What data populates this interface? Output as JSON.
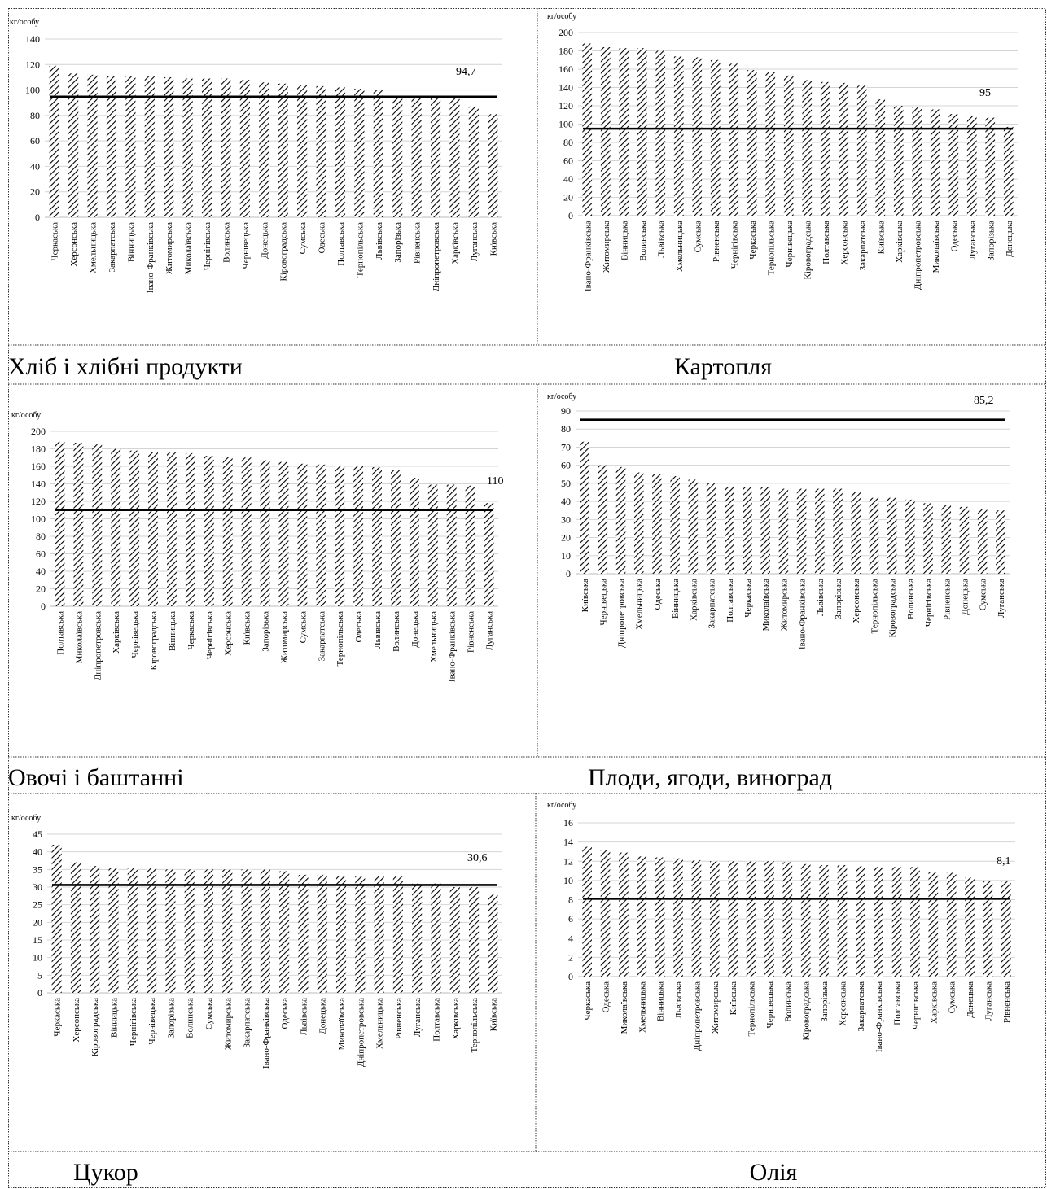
{
  "chart_data": [
    {
      "type": "bar",
      "title": "Хліб і хлібні продукти",
      "ylabel": "кг/особу",
      "ylim": [
        0,
        140
      ],
      "yticks": [
        0,
        20,
        40,
        60,
        80,
        100,
        120,
        140
      ],
      "reference_line": 94.7,
      "reference_label": "94,7",
      "categories": [
        "Черкаська",
        "Херсонська",
        "Хмельницька",
        "Закарпатська",
        "Вінницька",
        "Івано-Франківська",
        "Житомирська",
        "Миколаївська",
        "Чернігівська",
        "Волинська",
        "Чернівецька",
        "Донецька",
        "Кіровоградська",
        "Сумська",
        "Одеська",
        "Полтавська",
        "Тернопільська",
        "Львівська",
        "Запорізька",
        "Рівненська",
        "Дніпропетровська",
        "Харківська",
        "Луганська",
        "Київська"
      ],
      "values": [
        119,
        113,
        112,
        111,
        111,
        111,
        110,
        109,
        109,
        109,
        108,
        106,
        105,
        104,
        103,
        102,
        101,
        100,
        95,
        94,
        94,
        94,
        87,
        81
      ]
    },
    {
      "type": "bar",
      "title": "Картопля",
      "ylabel": "кг/особу",
      "ylim": [
        0,
        200
      ],
      "yticks": [
        0,
        20,
        40,
        60,
        80,
        100,
        120,
        140,
        160,
        180,
        200
      ],
      "reference_line": 95,
      "reference_label": "95",
      "categories": [
        "Івано-Франківська",
        "Житомирська",
        "Вінницька",
        "Волинська",
        "Львівська",
        "Хмельницька",
        "Сумська",
        "Рівненська",
        "Чернігівська",
        "Черкаська",
        "Тернопільська",
        "Чернівецька",
        "Кіровоградська",
        "Полтавська",
        "Херсонська",
        "Закарпатська",
        "Київська",
        "Харківська",
        "Дніпропетровська",
        "Миколаївська",
        "Одеська",
        "Луганська",
        "Запорізька",
        "Донецька"
      ],
      "values": [
        188,
        184,
        183,
        183,
        180,
        174,
        173,
        170,
        166,
        159,
        157,
        153,
        148,
        146,
        145,
        142,
        127,
        120,
        119,
        116,
        111,
        109,
        107,
        97
      ]
    },
    {
      "type": "bar",
      "title": "Овочі і баштанні",
      "ylabel": "кг/особу",
      "ylim": [
        0,
        200
      ],
      "yticks": [
        0,
        20,
        40,
        60,
        80,
        100,
        120,
        140,
        160,
        180,
        200
      ],
      "reference_line": 110,
      "reference_label": "110",
      "categories": [
        "Полтавська",
        "Миколаївська",
        "Дніпропетровська",
        "Харківська",
        "Чернівецька",
        "Кіровоградська",
        "Вінницька",
        "Черкаська",
        "Чернігівська",
        "Херсонська",
        "Київська",
        "Запорізька",
        "Житомирська",
        "Сумська",
        "Закарпатська",
        "Тернопільська",
        "Одеська",
        "Львівська",
        "Волинська",
        "Донецька",
        "Хмельницька",
        "Івано-Франківська",
        "Рівненська",
        "Луганська"
      ],
      "values": [
        188,
        187,
        185,
        180,
        178,
        176,
        176,
        175,
        172,
        171,
        170,
        167,
        165,
        163,
        162,
        161,
        160,
        159,
        156,
        147,
        139,
        139,
        138,
        118
      ]
    },
    {
      "type": "bar",
      "title": "Плоди, ягоди, виноград",
      "ylabel": "кг/особу",
      "ylim": [
        0,
        90
      ],
      "yticks": [
        0,
        10,
        20,
        30,
        40,
        50,
        60,
        70,
        80,
        90
      ],
      "reference_line": 85.2,
      "reference_label": "85,2",
      "categories": [
        "Київська",
        "Чернівецька",
        "Дніпропетровська",
        "Хмельницька",
        "Одеська",
        "Вінницька",
        "Харківська",
        "Закарпатська",
        "Полтавська",
        "Черкаська",
        "Миколаївська",
        "Житомирська",
        "Івано-Франківська",
        "Львівська",
        "Запорізька",
        "Херсонська",
        "Тернопільська",
        "Кіровоградська",
        "Волинська",
        "Чернігівська",
        "Рівненська",
        "Донецька",
        "Сумська",
        "Луганська"
      ],
      "values": [
        73,
        60,
        59,
        56,
        55,
        54,
        52,
        50,
        48,
        48,
        48,
        47,
        47,
        47,
        47,
        45,
        42,
        42,
        41,
        39,
        38,
        37,
        36,
        35
      ]
    },
    {
      "type": "bar",
      "title": "Цукор",
      "ylabel": "кг/особу",
      "ylim": [
        0,
        45
      ],
      "yticks": [
        0,
        5,
        10,
        15,
        20,
        25,
        30,
        35,
        40,
        45
      ],
      "reference_line": 30.6,
      "reference_label": "30,6",
      "categories": [
        "Черкаська",
        "Херсонська",
        "Кіровоградська",
        "Вінницька",
        "Чернігівська",
        "Чернівецька",
        "Запорізька",
        "Волинська",
        "Сумська",
        "Житомирська",
        "Закарпатська",
        "Івано-Франківська",
        "Одеська",
        "Львівська",
        "Донецька",
        "Миколаївська",
        "Дніпропетровська",
        "Хмельницька",
        "Рівненська",
        "Луганська",
        "Полтавська",
        "Харківська",
        "Тернопільська",
        "Київська"
      ],
      "values": [
        42,
        37,
        36,
        35.5,
        35.5,
        35.5,
        35,
        35,
        35,
        35,
        35,
        35,
        34.5,
        33.5,
        33.5,
        33,
        33,
        33,
        33,
        31,
        31,
        30,
        30,
        28
      ]
    },
    {
      "type": "bar",
      "title": "Олія",
      "ylabel": "кг/особу",
      "ylim": [
        0,
        16
      ],
      "yticks": [
        0,
        2,
        4,
        6,
        8,
        10,
        12,
        14,
        16
      ],
      "reference_line": 8.1,
      "reference_label": "8,1",
      "categories": [
        "Черкаська",
        "Одеська",
        "Миколаївська",
        "Хмельницька",
        "Вінницька",
        "Львівська",
        "Дніпропетровська",
        "Житомирська",
        "Київська",
        "Тернопільська",
        "Чернівецька",
        "Волинська",
        "Кіровоградська",
        "Запорізька",
        "Херсонська",
        "Закарпатська",
        "Івано-Франківська",
        "Полтавська",
        "Чернігівська",
        "Харківська",
        "Сумська",
        "Донецька",
        "Луганська",
        "Рівненська"
      ],
      "values": [
        13.5,
        13.2,
        12.9,
        12.5,
        12.4,
        12.3,
        12.1,
        12,
        12,
        12,
        12,
        11.9,
        11.7,
        11.6,
        11.6,
        11.5,
        11.4,
        11.4,
        11.4,
        10.9,
        10.8,
        10.3,
        9.9,
        9.9
      ]
    }
  ]
}
